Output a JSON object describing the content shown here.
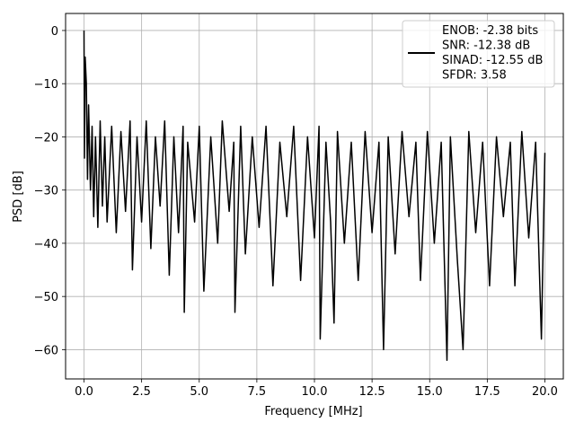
{
  "chart_data": {
    "type": "line",
    "xlabel": "Frequency [MHz]",
    "ylabel": "PSD [dB]",
    "xlim": [
      -0.8,
      20.8
    ],
    "ylim": [
      -65.5,
      3.2
    ],
    "xticks": [
      0,
      2.5,
      5,
      7.5,
      10,
      12.5,
      15,
      17.5,
      20
    ],
    "xtick_labels": [
      "0.0",
      "2.5",
      "5.0",
      "7.5",
      "10.0",
      "12.5",
      "15.0",
      "17.5",
      "20.0"
    ],
    "yticks": [
      0,
      -10,
      -20,
      -30,
      -40,
      -50,
      -60
    ],
    "ytick_labels": [
      "0",
      "−10",
      "−20",
      "−30",
      "−40",
      "−50",
      "−60"
    ],
    "grid": true,
    "legend_position": "top-right",
    "line_color": "#000000",
    "series": [
      {
        "name": "ENOB: -2.38 bits\nSNR: -12.38 dB\nSINAD: -12.55 dB\nSFDR: 3.58",
        "points": [
          [
            0.0,
            0.0
          ],
          [
            0.02,
            -24.0
          ],
          [
            0.05,
            -5.0
          ],
          [
            0.1,
            -10.0
          ],
          [
            0.15,
            -28.0
          ],
          [
            0.2,
            -14.0
          ],
          [
            0.28,
            -30.0
          ],
          [
            0.35,
            -18.0
          ],
          [
            0.42,
            -35.0
          ],
          [
            0.5,
            -20.0
          ],
          [
            0.6,
            -37.0
          ],
          [
            0.7,
            -17.0
          ],
          [
            0.8,
            -33.0
          ],
          [
            0.9,
            -20.0
          ],
          [
            1.0,
            -36.0
          ],
          [
            1.2,
            -18.0
          ],
          [
            1.4,
            -38.0
          ],
          [
            1.6,
            -19.0
          ],
          [
            1.8,
            -34.0
          ],
          [
            2.0,
            -17.0
          ],
          [
            2.1,
            -45.0
          ],
          [
            2.3,
            -20.0
          ],
          [
            2.5,
            -36.0
          ],
          [
            2.7,
            -17.0
          ],
          [
            2.9,
            -41.0
          ],
          [
            3.1,
            -20.0
          ],
          [
            3.3,
            -33.0
          ],
          [
            3.5,
            -17.0
          ],
          [
            3.7,
            -46.0
          ],
          [
            3.9,
            -20.0
          ],
          [
            4.1,
            -38.0
          ],
          [
            4.3,
            -18.0
          ],
          [
            4.35,
            -53.0
          ],
          [
            4.5,
            -21.0
          ],
          [
            4.8,
            -36.0
          ],
          [
            5.0,
            -18.0
          ],
          [
            5.2,
            -49.0
          ],
          [
            5.5,
            -20.0
          ],
          [
            5.8,
            -40.0
          ],
          [
            6.0,
            -17.0
          ],
          [
            6.3,
            -34.0
          ],
          [
            6.5,
            -21.0
          ],
          [
            6.55,
            -53.0
          ],
          [
            6.8,
            -18.0
          ],
          [
            7.0,
            -42.0
          ],
          [
            7.3,
            -20.0
          ],
          [
            7.6,
            -37.0
          ],
          [
            7.9,
            -18.0
          ],
          [
            8.2,
            -48.0
          ],
          [
            8.5,
            -21.0
          ],
          [
            8.8,
            -35.0
          ],
          [
            9.1,
            -18.0
          ],
          [
            9.4,
            -47.0
          ],
          [
            9.7,
            -20.0
          ],
          [
            10.0,
            -39.0
          ],
          [
            10.2,
            -18.0
          ],
          [
            10.25,
            -58.0
          ],
          [
            10.5,
            -21.0
          ],
          [
            10.7,
            -36.0
          ],
          [
            10.85,
            -55.0
          ],
          [
            11.0,
            -19.0
          ],
          [
            11.3,
            -40.0
          ],
          [
            11.6,
            -21.0
          ],
          [
            11.9,
            -47.0
          ],
          [
            12.2,
            -19.0
          ],
          [
            12.5,
            -38.0
          ],
          [
            12.8,
            -21.0
          ],
          [
            13.0,
            -60.0
          ],
          [
            13.2,
            -20.0
          ],
          [
            13.5,
            -42.0
          ],
          [
            13.8,
            -19.0
          ],
          [
            14.1,
            -35.0
          ],
          [
            14.4,
            -21.0
          ],
          [
            14.6,
            -47.0
          ],
          [
            14.9,
            -19.0
          ],
          [
            15.2,
            -40.0
          ],
          [
            15.5,
            -21.0
          ],
          [
            15.75,
            -62.0
          ],
          [
            15.9,
            -20.0
          ],
          [
            16.2,
            -43.0
          ],
          [
            16.45,
            -60.0
          ],
          [
            16.7,
            -19.0
          ],
          [
            17.0,
            -38.0
          ],
          [
            17.3,
            -21.0
          ],
          [
            17.6,
            -48.0
          ],
          [
            17.9,
            -20.0
          ],
          [
            18.2,
            -35.0
          ],
          [
            18.5,
            -21.0
          ],
          [
            18.7,
            -48.0
          ],
          [
            19.0,
            -19.0
          ],
          [
            19.3,
            -39.0
          ],
          [
            19.6,
            -21.0
          ],
          [
            19.85,
            -58.0
          ],
          [
            20.0,
            -23.0
          ]
        ]
      }
    ]
  }
}
